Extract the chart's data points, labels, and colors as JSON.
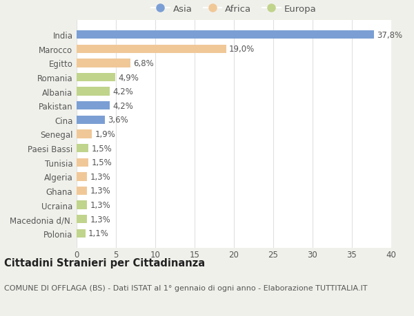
{
  "categories": [
    "India",
    "Marocco",
    "Egitto",
    "Romania",
    "Albania",
    "Pakistan",
    "Cina",
    "Senegal",
    "Paesi Bassi",
    "Tunisia",
    "Algeria",
    "Ghana",
    "Ucraina",
    "Macedonia d/N.",
    "Polonia"
  ],
  "values": [
    37.8,
    19.0,
    6.8,
    4.9,
    4.2,
    4.2,
    3.6,
    1.9,
    1.5,
    1.5,
    1.3,
    1.3,
    1.3,
    1.3,
    1.1
  ],
  "labels": [
    "37,8%",
    "19,0%",
    "6,8%",
    "4,9%",
    "4,2%",
    "4,2%",
    "3,6%",
    "1,9%",
    "1,5%",
    "1,5%",
    "1,3%",
    "1,3%",
    "1,3%",
    "1,3%",
    "1,1%"
  ],
  "continent": [
    "Asia",
    "Africa",
    "Africa",
    "Europa",
    "Europa",
    "Asia",
    "Asia",
    "Africa",
    "Europa",
    "Africa",
    "Africa",
    "Africa",
    "Europa",
    "Europa",
    "Europa"
  ],
  "colors": {
    "Asia": "#7b9fd4",
    "Africa": "#f0c898",
    "Europa": "#c0d48c"
  },
  "legend_items": [
    "Asia",
    "Africa",
    "Europa"
  ],
  "title": "Cittadini Stranieri per Cittadinanza",
  "subtitle": "COMUNE DI OFFLAGA (BS) - Dati ISTAT al 1° gennaio di ogni anno - Elaborazione TUTTITALIA.IT",
  "xlim": [
    0,
    40
  ],
  "xticks": [
    0,
    5,
    10,
    15,
    20,
    25,
    30,
    35,
    40
  ],
  "page_background": "#f0f0eb",
  "chart_background": "#ffffff",
  "grid_color": "#e0e0e0",
  "text_color": "#555555",
  "label_fontsize": 8.5,
  "tick_fontsize": 8.5,
  "title_fontsize": 10.5,
  "subtitle_fontsize": 8.0,
  "bar_height": 0.6
}
